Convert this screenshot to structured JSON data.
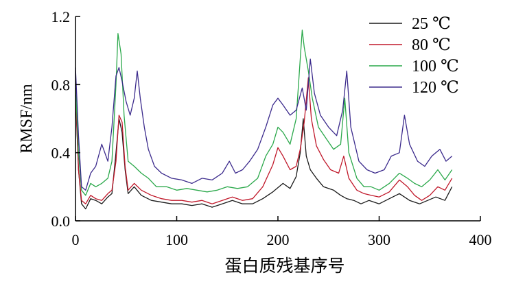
{
  "chart_data": {
    "type": "line",
    "title": "",
    "xlabel": "蛋白质残基序号",
    "ylabel": "RMSF/nm",
    "xlim": [
      0,
      400
    ],
    "ylim": [
      0,
      1.2
    ],
    "x_ticks": [
      "0",
      "100",
      "200",
      "300",
      "400"
    ],
    "y_ticks": [
      "0.0",
      "0.4",
      "0.8",
      "1.2"
    ],
    "grid": false,
    "legend_position": "top-right",
    "series": [
      {
        "name": "25 ℃",
        "color": "#1a1a1a",
        "points": [
          [
            0,
            0.74
          ],
          [
            3,
            0.3
          ],
          [
            6,
            0.1
          ],
          [
            10,
            0.07
          ],
          [
            15,
            0.13
          ],
          [
            20,
            0.12
          ],
          [
            26,
            0.1
          ],
          [
            32,
            0.14
          ],
          [
            36,
            0.16
          ],
          [
            40,
            0.4
          ],
          [
            43,
            0.6
          ],
          [
            46,
            0.52
          ],
          [
            49,
            0.3
          ],
          [
            52,
            0.16
          ],
          [
            58,
            0.2
          ],
          [
            65,
            0.15
          ],
          [
            75,
            0.12
          ],
          [
            85,
            0.11
          ],
          [
            95,
            0.1
          ],
          [
            105,
            0.1
          ],
          [
            115,
            0.09
          ],
          [
            125,
            0.1
          ],
          [
            135,
            0.08
          ],
          [
            145,
            0.1
          ],
          [
            155,
            0.12
          ],
          [
            165,
            0.1
          ],
          [
            175,
            0.1
          ],
          [
            185,
            0.13
          ],
          [
            195,
            0.17
          ],
          [
            205,
            0.22
          ],
          [
            212,
            0.19
          ],
          [
            218,
            0.26
          ],
          [
            222,
            0.4
          ],
          [
            225,
            0.6
          ],
          [
            228,
            0.38
          ],
          [
            232,
            0.3
          ],
          [
            238,
            0.25
          ],
          [
            245,
            0.2
          ],
          [
            255,
            0.18
          ],
          [
            262,
            0.15
          ],
          [
            268,
            0.13
          ],
          [
            275,
            0.12
          ],
          [
            282,
            0.1
          ],
          [
            290,
            0.12
          ],
          [
            300,
            0.1
          ],
          [
            310,
            0.13
          ],
          [
            320,
            0.16
          ],
          [
            330,
            0.12
          ],
          [
            340,
            0.1
          ],
          [
            348,
            0.12
          ],
          [
            356,
            0.14
          ],
          [
            365,
            0.12
          ],
          [
            372,
            0.2
          ]
        ]
      },
      {
        "name": "80 ℃",
        "color": "#c0182a",
        "points": [
          [
            0,
            0.78
          ],
          [
            3,
            0.3
          ],
          [
            6,
            0.12
          ],
          [
            10,
            0.1
          ],
          [
            15,
            0.15
          ],
          [
            20,
            0.13
          ],
          [
            26,
            0.12
          ],
          [
            32,
            0.16
          ],
          [
            36,
            0.18
          ],
          [
            40,
            0.35
          ],
          [
            43,
            0.62
          ],
          [
            46,
            0.58
          ],
          [
            49,
            0.32
          ],
          [
            52,
            0.18
          ],
          [
            58,
            0.22
          ],
          [
            65,
            0.18
          ],
          [
            75,
            0.15
          ],
          [
            85,
            0.13
          ],
          [
            95,
            0.12
          ],
          [
            105,
            0.12
          ],
          [
            115,
            0.11
          ],
          [
            125,
            0.12
          ],
          [
            135,
            0.1
          ],
          [
            145,
            0.12
          ],
          [
            155,
            0.14
          ],
          [
            165,
            0.12
          ],
          [
            175,
            0.13
          ],
          [
            185,
            0.2
          ],
          [
            195,
            0.33
          ],
          [
            200,
            0.43
          ],
          [
            205,
            0.38
          ],
          [
            212,
            0.3
          ],
          [
            218,
            0.32
          ],
          [
            222,
            0.42
          ],
          [
            226,
            0.58
          ],
          [
            230,
            0.84
          ],
          [
            233,
            0.6
          ],
          [
            238,
            0.44
          ],
          [
            245,
            0.36
          ],
          [
            252,
            0.3
          ],
          [
            260,
            0.28
          ],
          [
            265,
            0.38
          ],
          [
            270,
            0.25
          ],
          [
            278,
            0.18
          ],
          [
            285,
            0.16
          ],
          [
            292,
            0.15
          ],
          [
            300,
            0.14
          ],
          [
            310,
            0.17
          ],
          [
            320,
            0.24
          ],
          [
            328,
            0.2
          ],
          [
            335,
            0.15
          ],
          [
            342,
            0.12
          ],
          [
            350,
            0.15
          ],
          [
            358,
            0.2
          ],
          [
            365,
            0.18
          ],
          [
            372,
            0.25
          ]
        ]
      },
      {
        "name": "100 ℃",
        "color": "#2aa84a",
        "points": [
          [
            0,
            0.8
          ],
          [
            3,
            0.4
          ],
          [
            6,
            0.18
          ],
          [
            10,
            0.15
          ],
          [
            15,
            0.22
          ],
          [
            20,
            0.2
          ],
          [
            26,
            0.22
          ],
          [
            32,
            0.25
          ],
          [
            36,
            0.35
          ],
          [
            40,
            0.8
          ],
          [
            42,
            1.1
          ],
          [
            45,
            0.98
          ],
          [
            48,
            0.62
          ],
          [
            52,
            0.35
          ],
          [
            58,
            0.32
          ],
          [
            65,
            0.28
          ],
          [
            72,
            0.25
          ],
          [
            80,
            0.2
          ],
          [
            90,
            0.2
          ],
          [
            100,
            0.18
          ],
          [
            110,
            0.19
          ],
          [
            120,
            0.18
          ],
          [
            130,
            0.17
          ],
          [
            140,
            0.18
          ],
          [
            150,
            0.2
          ],
          [
            160,
            0.19
          ],
          [
            170,
            0.2
          ],
          [
            180,
            0.25
          ],
          [
            188,
            0.38
          ],
          [
            195,
            0.45
          ],
          [
            200,
            0.55
          ],
          [
            205,
            0.52
          ],
          [
            212,
            0.45
          ],
          [
            218,
            0.6
          ],
          [
            222,
            0.95
          ],
          [
            224,
            1.12
          ],
          [
            226,
            1.02
          ],
          [
            230,
            0.88
          ],
          [
            234,
            0.72
          ],
          [
            240,
            0.55
          ],
          [
            248,
            0.48
          ],
          [
            255,
            0.42
          ],
          [
            262,
            0.45
          ],
          [
            266,
            0.72
          ],
          [
            270,
            0.4
          ],
          [
            278,
            0.25
          ],
          [
            285,
            0.2
          ],
          [
            292,
            0.2
          ],
          [
            300,
            0.18
          ],
          [
            310,
            0.22
          ],
          [
            320,
            0.28
          ],
          [
            328,
            0.25
          ],
          [
            335,
            0.22
          ],
          [
            342,
            0.2
          ],
          [
            350,
            0.24
          ],
          [
            358,
            0.3
          ],
          [
            365,
            0.24
          ],
          [
            372,
            0.3
          ]
        ]
      },
      {
        "name": "120 ℃",
        "color": "#3b2a8c",
        "points": [
          [
            0,
            0.9
          ],
          [
            3,
            0.5
          ],
          [
            6,
            0.2
          ],
          [
            10,
            0.18
          ],
          [
            15,
            0.28
          ],
          [
            20,
            0.32
          ],
          [
            26,
            0.45
          ],
          [
            32,
            0.35
          ],
          [
            36,
            0.55
          ],
          [
            40,
            0.85
          ],
          [
            43,
            0.9
          ],
          [
            46,
            0.82
          ],
          [
            50,
            0.7
          ],
          [
            54,
            0.62
          ],
          [
            58,
            0.72
          ],
          [
            61,
            0.88
          ],
          [
            64,
            0.72
          ],
          [
            68,
            0.55
          ],
          [
            72,
            0.42
          ],
          [
            78,
            0.32
          ],
          [
            85,
            0.28
          ],
          [
            95,
            0.25
          ],
          [
            105,
            0.24
          ],
          [
            115,
            0.22
          ],
          [
            125,
            0.25
          ],
          [
            135,
            0.24
          ],
          [
            145,
            0.28
          ],
          [
            152,
            0.35
          ],
          [
            158,
            0.28
          ],
          [
            165,
            0.3
          ],
          [
            172,
            0.35
          ],
          [
            180,
            0.42
          ],
          [
            188,
            0.55
          ],
          [
            195,
            0.68
          ],
          [
            200,
            0.72
          ],
          [
            205,
            0.68
          ],
          [
            212,
            0.62
          ],
          [
            218,
            0.65
          ],
          [
            224,
            0.78
          ],
          [
            228,
            0.65
          ],
          [
            232,
            0.95
          ],
          [
            236,
            0.75
          ],
          [
            242,
            0.62
          ],
          [
            250,
            0.55
          ],
          [
            258,
            0.5
          ],
          [
            264,
            0.65
          ],
          [
            268,
            0.88
          ],
          [
            272,
            0.55
          ],
          [
            280,
            0.35
          ],
          [
            288,
            0.3
          ],
          [
            296,
            0.28
          ],
          [
            305,
            0.3
          ],
          [
            312,
            0.38
          ],
          [
            320,
            0.4
          ],
          [
            325,
            0.62
          ],
          [
            330,
            0.45
          ],
          [
            338,
            0.35
          ],
          [
            345,
            0.32
          ],
          [
            352,
            0.38
          ],
          [
            360,
            0.42
          ],
          [
            366,
            0.35
          ],
          [
            372,
            0.38
          ]
        ]
      }
    ]
  }
}
